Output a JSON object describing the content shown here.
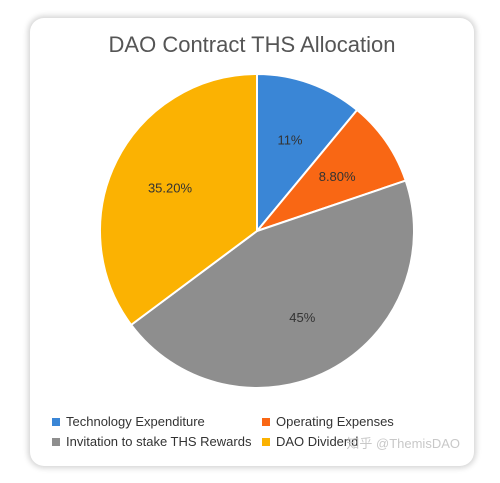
{
  "chart_data": {
    "type": "pie",
    "title": "DAO Contract THS Allocation",
    "categories": [
      "Technology Expenditure",
      "Operating Expenses",
      "Invitation to stake THS Rewards",
      "DAO Dividend"
    ],
    "values": [
      11,
      8.8,
      45,
      35.2
    ],
    "data_labels": [
      "11%",
      "8.80%",
      "45%",
      "35.20%"
    ],
    "colors": [
      "#3a86d6",
      "#f96714",
      "#8e8e8e",
      "#fbb202"
    ],
    "legend_position": "bottom"
  },
  "watermark": "知乎 @ThemisDAO"
}
